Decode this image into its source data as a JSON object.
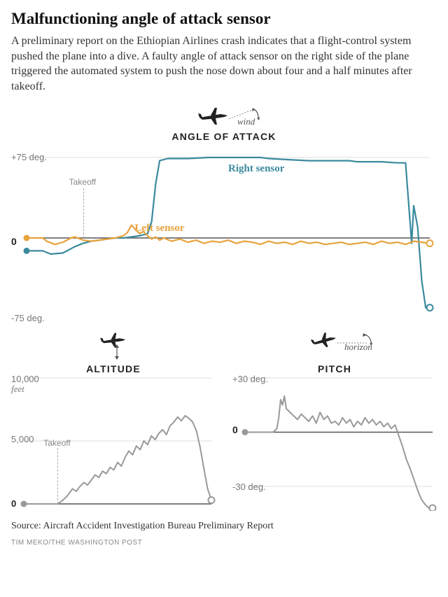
{
  "title": "Malfunctioning angle of attack sensor",
  "subtitle": "A preliminary report on the Ethiopian Airlines crash indicates that a flight-control system pushed the plane into a dive. A faulty angle of attack sensor on the right side of the plane triggered the automated system to push the nose down about four and a half minutes after takeoff.",
  "source": "Source: Aircraft Accident Investigation Bureau Preliminary Report",
  "credit": "TIM MEKO/THE WASHINGTON POST",
  "colors": {
    "right_sensor": "#3a8a9e",
    "left_sensor": "#e8a33d",
    "grey_line": "#999999",
    "axis_text": "#777777",
    "baseline": "#666666",
    "dashed": "#aaaaaa",
    "plane": "#222222"
  },
  "aoa_chart": {
    "type": "line",
    "title": "ANGLE OF ATTACK",
    "header_icon_label": "wind",
    "y_axis": {
      "ticks": [
        "+75 deg.",
        "0",
        "-75 deg."
      ],
      "ylim": [
        -75,
        75
      ]
    },
    "x_range": [
      0,
      100
    ],
    "takeoff_x": 14,
    "takeoff_label": "Takeoff",
    "series": {
      "right": {
        "label": "Right sensor",
        "color": "#3a8a9e",
        "label_pos": {
          "x": 50,
          "y": 20
        },
        "data": [
          [
            0,
            -12
          ],
          [
            4,
            -12
          ],
          [
            6,
            -15
          ],
          [
            9,
            -14
          ],
          [
            12,
            -8
          ],
          [
            14,
            -5
          ],
          [
            16,
            -3
          ],
          [
            18,
            -2
          ],
          [
            20,
            -1
          ],
          [
            22,
            0
          ],
          [
            24,
            0
          ],
          [
            26,
            1
          ],
          [
            28,
            2
          ],
          [
            30,
            4
          ],
          [
            31,
            15
          ],
          [
            32,
            50
          ],
          [
            33,
            72
          ],
          [
            35,
            74
          ],
          [
            40,
            74
          ],
          [
            45,
            75
          ],
          [
            50,
            75
          ],
          [
            55,
            75
          ],
          [
            58,
            75
          ],
          [
            60,
            74
          ],
          [
            65,
            73
          ],
          [
            70,
            72
          ],
          [
            75,
            72
          ],
          [
            80,
            72
          ],
          [
            82,
            71
          ],
          [
            84,
            71
          ],
          [
            88,
            71
          ],
          [
            92,
            70
          ],
          [
            94,
            70
          ],
          [
            95,
            20
          ],
          [
            95.5,
            -5
          ],
          [
            96,
            30
          ],
          [
            97,
            10
          ],
          [
            98,
            -40
          ],
          [
            99,
            -65
          ],
          [
            100,
            -65
          ]
        ],
        "start_dot": [
          0,
          -12
        ],
        "end_dot": [
          100,
          -65
        ]
      },
      "left": {
        "label": "Left sensor",
        "color": "#e8a33d",
        "label_pos": {
          "x": 32,
          "y": 46
        },
        "data": [
          [
            0,
            0
          ],
          [
            2,
            0
          ],
          [
            4,
            0
          ],
          [
            5,
            -3
          ],
          [
            7,
            -6
          ],
          [
            9,
            -4
          ],
          [
            11,
            0
          ],
          [
            12,
            1
          ],
          [
            14,
            -2
          ],
          [
            16,
            -3
          ],
          [
            18,
            -2
          ],
          [
            20,
            -1
          ],
          [
            22,
            0
          ],
          [
            24,
            2
          ],
          [
            25,
            5
          ],
          [
            26,
            12
          ],
          [
            27,
            8
          ],
          [
            28,
            4
          ],
          [
            29,
            6
          ],
          [
            30,
            2
          ],
          [
            31,
            -1
          ],
          [
            32,
            1
          ],
          [
            33,
            -2
          ],
          [
            34,
            0
          ],
          [
            36,
            -3
          ],
          [
            38,
            -1
          ],
          [
            40,
            -4
          ],
          [
            42,
            -2
          ],
          [
            44,
            -5
          ],
          [
            46,
            -3
          ],
          [
            48,
            -4
          ],
          [
            50,
            -2
          ],
          [
            52,
            -5
          ],
          [
            54,
            -3
          ],
          [
            56,
            -4
          ],
          [
            58,
            -6
          ],
          [
            60,
            -3
          ],
          [
            62,
            -5
          ],
          [
            64,
            -4
          ],
          [
            66,
            -6
          ],
          [
            68,
            -3
          ],
          [
            70,
            -5
          ],
          [
            72,
            -4
          ],
          [
            74,
            -6
          ],
          [
            76,
            -5
          ],
          [
            78,
            -4
          ],
          [
            80,
            -6
          ],
          [
            82,
            -5
          ],
          [
            84,
            -4
          ],
          [
            86,
            -6
          ],
          [
            88,
            -3
          ],
          [
            90,
            -5
          ],
          [
            92,
            -4
          ],
          [
            94,
            -6
          ],
          [
            96,
            -3
          ],
          [
            98,
            -4
          ],
          [
            100,
            -5
          ]
        ],
        "start_dot": [
          0,
          0
        ],
        "end_dot": [
          100,
          -5
        ]
      }
    }
  },
  "altitude_chart": {
    "type": "line",
    "title": "ALTITUDE",
    "y_axis": {
      "ticks": [
        {
          "v": 10000,
          "l": "10,000"
        },
        {
          "v": 5000,
          "l": "5,000"
        },
        {
          "v": 0,
          "l": "0"
        }
      ],
      "unit": "feet",
      "ylim": [
        0,
        10000
      ]
    },
    "x_range": [
      0,
      100
    ],
    "takeoff_x": 18,
    "takeoff_label": "Takeoff",
    "color": "#999999",
    "data": [
      [
        0,
        0
      ],
      [
        5,
        0
      ],
      [
        10,
        0
      ],
      [
        15,
        0
      ],
      [
        18,
        0
      ],
      [
        20,
        200
      ],
      [
        23,
        600
      ],
      [
        26,
        1200
      ],
      [
        28,
        1000
      ],
      [
        30,
        1400
      ],
      [
        32,
        1700
      ],
      [
        34,
        1500
      ],
      [
        36,
        1900
      ],
      [
        38,
        2300
      ],
      [
        40,
        2100
      ],
      [
        42,
        2600
      ],
      [
        44,
        2400
      ],
      [
        46,
        2900
      ],
      [
        48,
        2700
      ],
      [
        50,
        3300
      ],
      [
        52,
        3000
      ],
      [
        54,
        3700
      ],
      [
        56,
        4200
      ],
      [
        58,
        3900
      ],
      [
        60,
        4600
      ],
      [
        62,
        4300
      ],
      [
        64,
        5000
      ],
      [
        66,
        4700
      ],
      [
        68,
        5400
      ],
      [
        70,
        5100
      ],
      [
        72,
        5600
      ],
      [
        74,
        5900
      ],
      [
        76,
        5500
      ],
      [
        78,
        6200
      ],
      [
        80,
        6500
      ],
      [
        82,
        6900
      ],
      [
        84,
        6600
      ],
      [
        86,
        7000
      ],
      [
        88,
        6800
      ],
      [
        90,
        6500
      ],
      [
        92,
        5800
      ],
      [
        94,
        4500
      ],
      [
        96,
        2800
      ],
      [
        98,
        1200
      ],
      [
        100,
        300
      ]
    ],
    "start_dot": [
      0,
      0
    ],
    "end_dot": [
      100,
      300
    ]
  },
  "pitch_chart": {
    "type": "line",
    "title": "PITCH",
    "header_icon_label": "horizon",
    "y_axis": {
      "ticks": [
        {
          "v": 30,
          "l": "+30 deg."
        },
        {
          "v": 0,
          "l": "0"
        },
        {
          "v": -30,
          "l": "-30 deg."
        }
      ],
      "ylim": [
        -42,
        30
      ]
    },
    "x_range": [
      0,
      100
    ],
    "color": "#999999",
    "data": [
      [
        0,
        0
      ],
      [
        4,
        0
      ],
      [
        8,
        0
      ],
      [
        12,
        0
      ],
      [
        15,
        0
      ],
      [
        17,
        2
      ],
      [
        18,
        8
      ],
      [
        19,
        18
      ],
      [
        20,
        15
      ],
      [
        21,
        20
      ],
      [
        22,
        13
      ],
      [
        24,
        11
      ],
      [
        26,
        9
      ],
      [
        28,
        7
      ],
      [
        30,
        10
      ],
      [
        32,
        8
      ],
      [
        34,
        6
      ],
      [
        36,
        9
      ],
      [
        38,
        5
      ],
      [
        40,
        11
      ],
      [
        42,
        7
      ],
      [
        44,
        9
      ],
      [
        46,
        5
      ],
      [
        48,
        6
      ],
      [
        50,
        4
      ],
      [
        52,
        8
      ],
      [
        54,
        5
      ],
      [
        56,
        7
      ],
      [
        58,
        3
      ],
      [
        60,
        6
      ],
      [
        62,
        4
      ],
      [
        64,
        8
      ],
      [
        66,
        5
      ],
      [
        68,
        7
      ],
      [
        70,
        4
      ],
      [
        72,
        6
      ],
      [
        74,
        3
      ],
      [
        76,
        5
      ],
      [
        78,
        2
      ],
      [
        80,
        4
      ],
      [
        82,
        -2
      ],
      [
        84,
        -8
      ],
      [
        86,
        -15
      ],
      [
        88,
        -20
      ],
      [
        90,
        -26
      ],
      [
        92,
        -32
      ],
      [
        94,
        -37
      ],
      [
        96,
        -40
      ],
      [
        98,
        -42
      ],
      [
        100,
        -42
      ]
    ],
    "start_dot": [
      0,
      0
    ],
    "end_dot": [
      100,
      -42
    ]
  }
}
